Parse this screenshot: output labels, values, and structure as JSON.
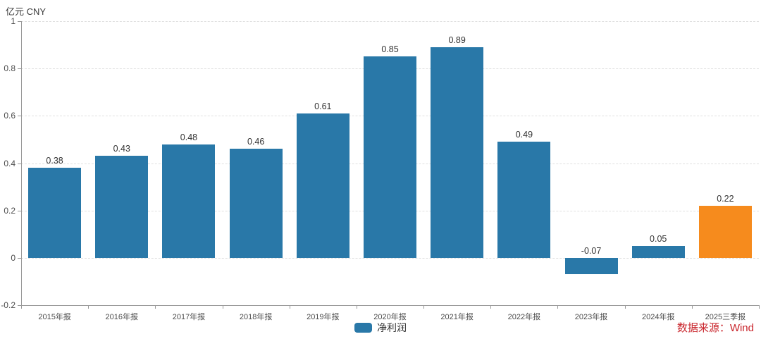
{
  "header": {
    "unit_label": "亿元  CNY"
  },
  "chart_data": {
    "type": "bar",
    "categories": [
      "2015年报",
      "2016年报",
      "2017年报",
      "2018年报",
      "2019年报",
      "2020年报",
      "2021年报",
      "2022年报",
      "2023年报",
      "2024年报",
      "2025三季报"
    ],
    "series": [
      {
        "name": "净利润",
        "values": [
          0.38,
          0.43,
          0.48,
          0.46,
          0.61,
          0.85,
          0.89,
          0.49,
          -0.07,
          0.05,
          0.22
        ]
      }
    ],
    "value_labels": [
      "0.38",
      "0.43",
      "0.48",
      "0.46",
      "0.61",
      "0.85",
      "0.89",
      "0.49",
      "-0.07",
      "0.05",
      "0.22"
    ],
    "highlight_index": 10,
    "ylim": [
      -0.2,
      1
    ],
    "yticks": [
      -0.2,
      0,
      0.2,
      0.4,
      0.6,
      0.8,
      1
    ],
    "ytick_labels": [
      "-0.2",
      "0",
      "0.2",
      "0.4",
      "0.6",
      "0.8",
      "1"
    ],
    "xlabel": "",
    "ylabel": "亿元  CNY",
    "grid": "dashed-horizontal",
    "legend_position": "bottom-center",
    "colors": {
      "bar": "#2978a8",
      "highlight": "#f68b1d",
      "axis": "#999999",
      "grid": "#e0e0e0",
      "value_label": "#333333",
      "tick_label": "#4d4d4d"
    }
  },
  "legend": {
    "label": "净利润"
  },
  "footer": {
    "source_label": "数据来源：Wind",
    "source_color": "#c9242b"
  }
}
